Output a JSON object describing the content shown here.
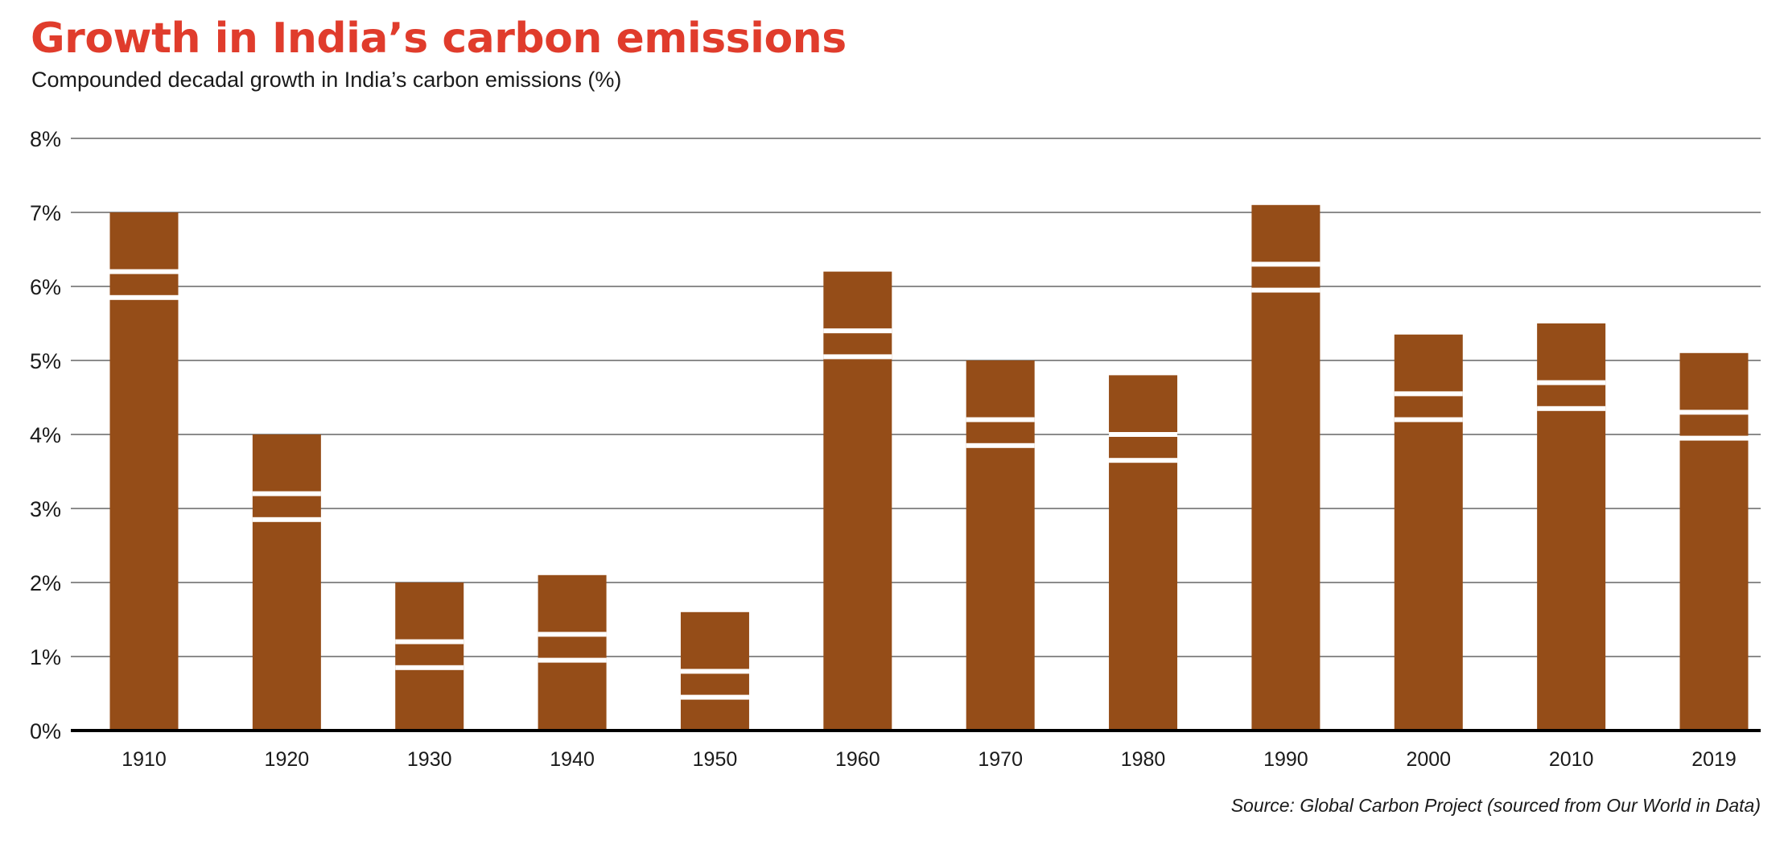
{
  "colors": {
    "title": "#e03c2c",
    "bar": "#954d18",
    "stripe": "#ffffff",
    "grid": "#8c8c8c",
    "baseline": "#000000",
    "text": "#1a1a1a"
  },
  "chart_data": {
    "type": "bar",
    "title": "Growth in India’s carbon emissions",
    "subtitle": "Compounded decadal growth in India’s carbon emissions (%)",
    "source": "Source: Global Carbon Project (sourced from Our World in Data)",
    "categories": [
      "1910",
      "1920",
      "1930",
      "1940",
      "1950",
      "1960",
      "1970",
      "1980",
      "1990",
      "2000",
      "2010",
      "2019"
    ],
    "values": [
      7.0,
      4.0,
      2.0,
      2.1,
      1.6,
      6.2,
      5.0,
      4.8,
      7.1,
      5.35,
      5.5,
      5.1
    ],
    "ylim": [
      0,
      8
    ],
    "yticks": [
      0,
      1,
      2,
      3,
      4,
      5,
      6,
      7,
      8
    ],
    "ytick_labels": [
      "0%",
      "1%",
      "2%",
      "3%",
      "4%",
      "5%",
      "6%",
      "7%",
      "8%"
    ],
    "grid": true,
    "xlabel": "",
    "ylabel": ""
  }
}
